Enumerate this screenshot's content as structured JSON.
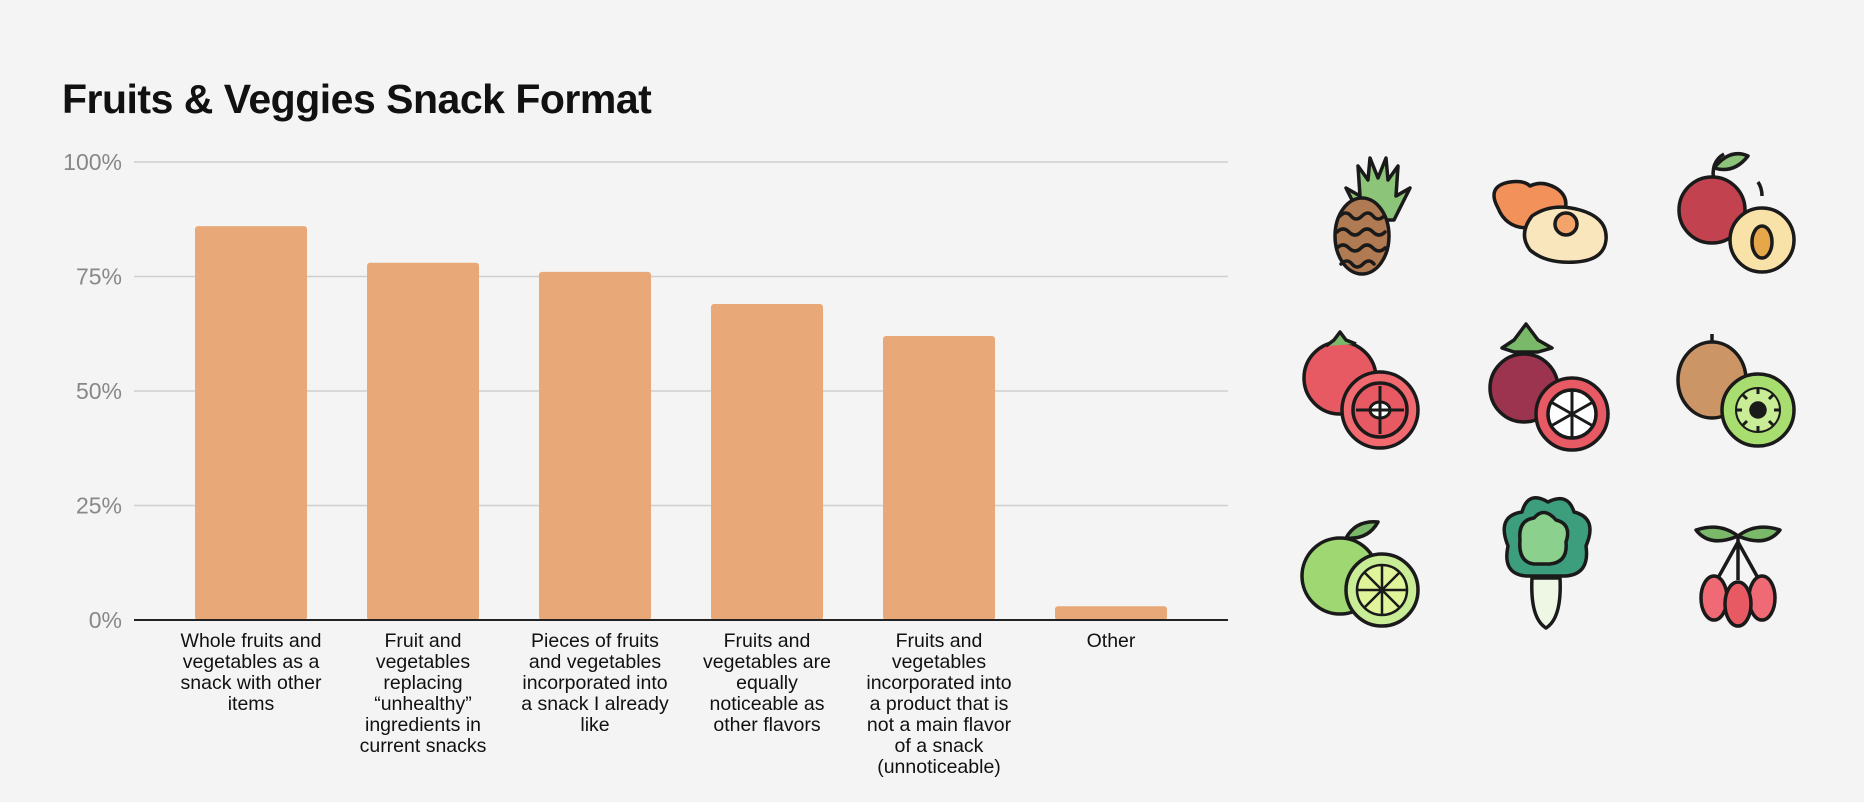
{
  "chart_data": {
    "type": "bar",
    "title": "Fruits & Veggies Snack Format",
    "categories": [
      "Whole fruits and vegetables as a snack with other items",
      "Fruit and vegetables replacing “unhealthy” ingredients in current snacks",
      "Pieces of fruits and vegetables incorporated into a snack I already like",
      "Fruits and vegetables are equally noticeable as other flavors",
      "Fruits and vegetables incorporated into a product that is not a main flavor of a snack (unnoticeable)",
      "Other"
    ],
    "category_lines": [
      [
        "Whole fruits and",
        "vegetables as a",
        "snack with other",
        "items"
      ],
      [
        "Fruit and",
        "vegetables",
        "replacing",
        "“unhealthy”",
        "ingredients in",
        "current snacks"
      ],
      [
        "Pieces of fruits",
        "and vegetables",
        "incorporated into",
        "a snack I already",
        "like"
      ],
      [
        "Fruits and",
        "vegetables are",
        "equally",
        "noticeable as",
        "other flavors"
      ],
      [
        "Fruits and",
        "vegetables",
        "incorporated into",
        "a product that is",
        "not a main flavor",
        "of a snack",
        "(unnoticeable)"
      ],
      [
        "Other"
      ]
    ],
    "values": [
      86,
      78,
      76,
      69,
      62,
      3
    ],
    "ylim": [
      0,
      100
    ],
    "yticks": [
      0,
      25,
      50,
      75,
      100
    ],
    "ytick_labels": [
      "0%",
      "25%",
      "50%",
      "75%",
      "100%"
    ],
    "xlabel": "",
    "ylabel": "",
    "grid": true,
    "bar_color": "#e8a878"
  },
  "icons": [
    {
      "name": "pineapple-icon"
    },
    {
      "name": "peach-icon"
    },
    {
      "name": "plum-icon"
    },
    {
      "name": "tomato-icon"
    },
    {
      "name": "mangosteen-icon"
    },
    {
      "name": "kiwi-icon"
    },
    {
      "name": "lime-icon"
    },
    {
      "name": "bok-choy-icon"
    },
    {
      "name": "goji-berry-icon"
    }
  ]
}
